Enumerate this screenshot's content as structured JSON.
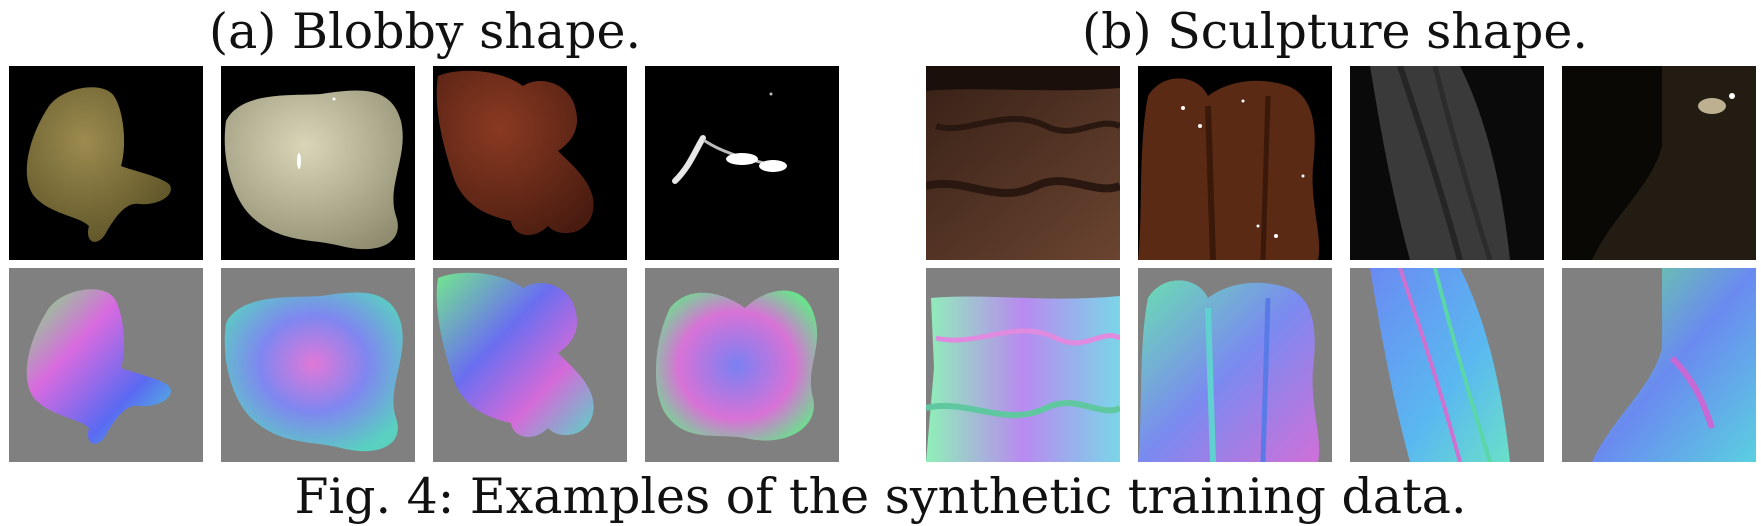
{
  "figure": {
    "caption": "Fig. 4: Examples of the synthetic training data.",
    "groups": [
      {
        "title": "(a) Blobby shape.",
        "renders": [
          "yellow-blob-render",
          "cream-blob-render",
          "brown-blob-render",
          "specular-highlight-render"
        ],
        "normals": [
          "blob-normal-map-1",
          "blob-normal-map-2",
          "blob-normal-map-3",
          "blob-normal-map-4"
        ]
      },
      {
        "title": "(b) Sculpture shape.",
        "renders": [
          "brown-drapery-render",
          "brown-sculpture-render",
          "gray-drapery-render",
          "dark-sculpture-render"
        ],
        "normals": [
          "sculpture-normal-map-1",
          "sculpture-normal-map-2",
          "sculpture-normal-map-3",
          "sculpture-normal-map-4"
        ]
      }
    ],
    "colors": {
      "render_background": "#000000",
      "normal_background": "#808080"
    }
  }
}
